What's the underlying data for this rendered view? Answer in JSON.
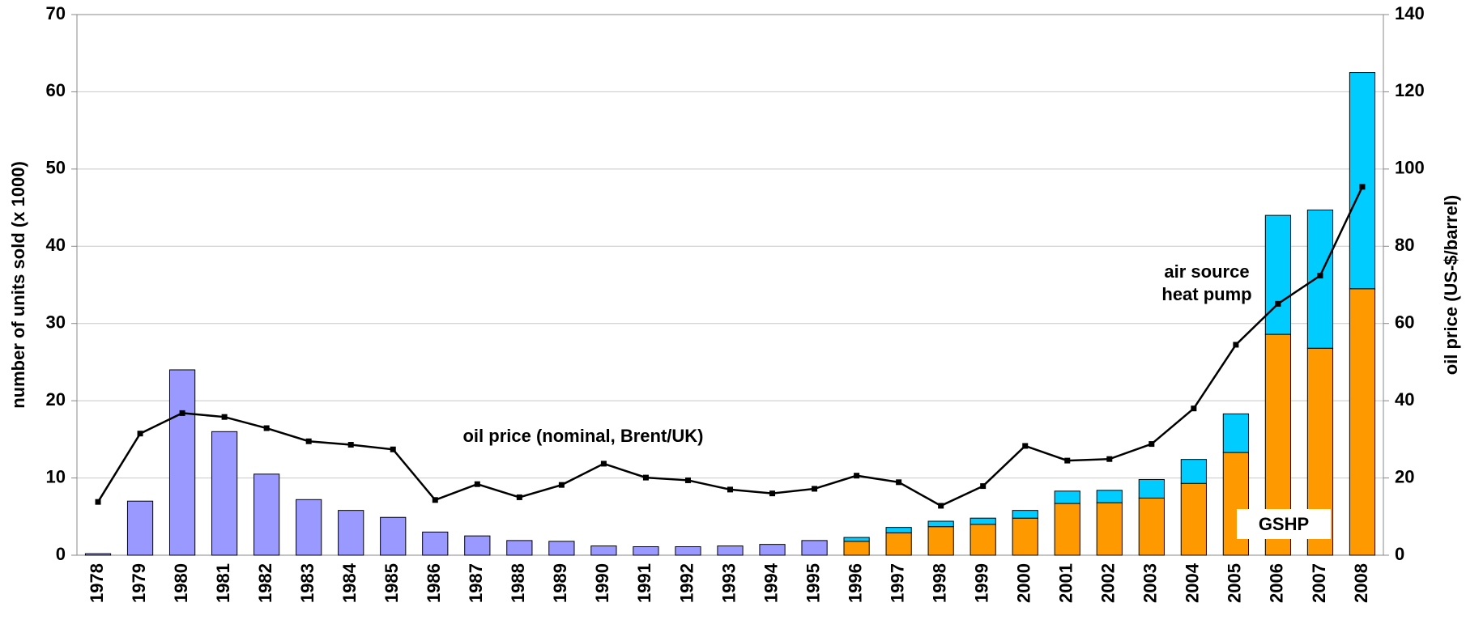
{
  "chart_data": {
    "type": "bar",
    "categories": [
      "1978",
      "1979",
      "1980",
      "1981",
      "1982",
      "1983",
      "1984",
      "1985",
      "1986",
      "1987",
      "1988",
      "1989",
      "1990",
      "1991",
      "1992",
      "1993",
      "1994",
      "1995",
      "1996",
      "1997",
      "1998",
      "1999",
      "2000",
      "2001",
      "2002",
      "2003",
      "2004",
      "2005",
      "2006",
      "2007",
      "2008"
    ],
    "ylabel": "number of units sold (x 1000)",
    "y2label": "oil price (US-$/barrel)",
    "ylim": [
      0,
      70
    ],
    "yticks": [
      0,
      10,
      20,
      30,
      40,
      50,
      60,
      70
    ],
    "y2lim": [
      0,
      140
    ],
    "y2ticks": [
      0,
      20,
      40,
      60,
      80,
      100,
      120,
      140
    ],
    "grid": true,
    "series": [
      {
        "type": "bar",
        "color": "#9999ff",
        "values": [
          0.2,
          7,
          24,
          16,
          10.5,
          7.2,
          5.8,
          4.9,
          3,
          2.5,
          1.9,
          1.8,
          1.2,
          1.1,
          1.1,
          1.2,
          1.4,
          1.9,
          null,
          null,
          null,
          null,
          null,
          null,
          null,
          null,
          null,
          null,
          null,
          null,
          null
        ]
      },
      {
        "type": "bar",
        "name": "GSHP",
        "color": "#ff9900",
        "values": [
          null,
          null,
          null,
          null,
          null,
          null,
          null,
          null,
          null,
          null,
          null,
          null,
          null,
          null,
          null,
          null,
          null,
          null,
          1.8,
          2.9,
          3.7,
          4.0,
          4.8,
          6.7,
          6.8,
          7.4,
          9.3,
          13.3,
          28.6,
          26.8,
          34.5
        ]
      },
      {
        "type": "bar",
        "name": "air source heat pump",
        "color": "#00ccff",
        "values": [
          null,
          null,
          null,
          null,
          null,
          null,
          null,
          null,
          null,
          null,
          null,
          null,
          null,
          null,
          null,
          null,
          null,
          null,
          0.5,
          0.7,
          0.7,
          0.8,
          1.0,
          1.6,
          1.6,
          2.4,
          3.1,
          5.0,
          15.4,
          17.9,
          28.0
        ]
      },
      {
        "type": "line",
        "name": "oil price (nominal, Brent/UK)",
        "color": "#000000",
        "axis": "y2",
        "values": [
          13.8,
          31.5,
          36.8,
          35.8,
          32.9,
          29.5,
          28.6,
          27.4,
          14.3,
          18.4,
          15.0,
          18.2,
          23.7,
          20.1,
          19.4,
          17.0,
          16.0,
          17.2,
          20.6,
          18.9,
          12.8,
          17.9,
          28.3,
          24.5,
          24.9,
          28.8,
          38.0,
          54.5,
          65.1,
          72.4,
          95.4
        ]
      }
    ]
  }
}
